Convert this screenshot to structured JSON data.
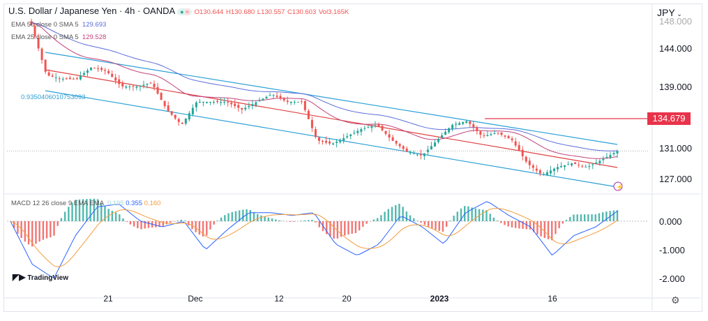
{
  "header": {
    "title": "U.S. Dollar / Japanese Yen · 4h · OANDA",
    "open": "O130.644",
    "high": "H130.680",
    "low": "L130.557",
    "close": "C130.603",
    "vol": "Vol3.165K",
    "currency": "JPY"
  },
  "indicators": {
    "ema50_label": "EMA 50 close 0 SMA 5",
    "ema50_value": "129.693",
    "ema25_label": "EMA 25 close 0 SMA 5",
    "ema25_value": "129.528",
    "fib_label": "0.9350406010753093",
    "macd_label": "MACD 12 26 close 9 EMA EMA",
    "macd_hist": "0.195",
    "macd_line": "0.355",
    "macd_signal": "0.160"
  },
  "price_marker": "134.679",
  "branding": "TradingView",
  "colors": {
    "up": "#26a69a",
    "down": "#ef5350",
    "channel": "#2a9fd6",
    "midline": "#e04040",
    "ema50": "#5b6cd9",
    "ema25": "#c0417a",
    "macd": "#2962ff",
    "signal": "#f39c3c",
    "marker": "#e8344b"
  },
  "chart_data": {
    "type": "candlestick",
    "price_axis": {
      "ticks": [
        "144.000",
        "139.000",
        "131.000",
        "127.000"
      ],
      "partial_top": "148.000"
    },
    "macd_axis": {
      "ticks": [
        "0.000",
        "-1.000",
        "-2.000"
      ]
    },
    "x_ticks": [
      "21",
      "Dec",
      "12",
      "20",
      "2023",
      "16"
    ],
    "approx_close_path": [
      147,
      140.5,
      140,
      140,
      141.5,
      141,
      139,
      139,
      139.5,
      136,
      134,
      137,
      137,
      137,
      136,
      137,
      138,
      137,
      137,
      132,
      131.5,
      132.5,
      133.5,
      134,
      132,
      130.5,
      130,
      132,
      134,
      134.5,
      132.5,
      133,
      132,
      129,
      127.5,
      128.5,
      129,
      128.5,
      129.5,
      130.6
    ],
    "approx_macd_path": [
      0,
      -1.5,
      -2,
      -0.5,
      0.5,
      0.6,
      0,
      -0.2,
      0,
      -1.0,
      -0.3,
      0.3,
      0.3,
      0.2,
      0.3,
      -0.8,
      -1.2,
      -0.8,
      0.2,
      -0.2,
      -0.8,
      0.3,
      0.7,
      0.2,
      -0.2,
      -1.2,
      -0.5,
      -0.2,
      0.35
    ],
    "resistance_level": 134.679
  }
}
